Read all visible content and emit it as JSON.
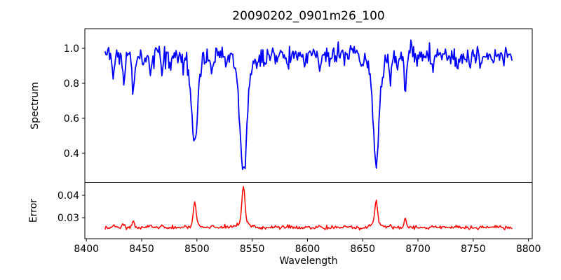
{
  "figure": {
    "background": "#ffffff",
    "spine_color": "#000000",
    "text_color": "#000000"
  },
  "chart_data": {
    "type": "line",
    "title": "20090202_0901m26_100",
    "xlabel": "Wavelength",
    "grid": false,
    "legend": "none",
    "xlim": [
      8398.6,
      8803.4
    ],
    "x_ticks": [
      8400,
      8450,
      8500,
      8550,
      8600,
      8650,
      8700,
      8750,
      8800
    ],
    "x_tick_labels": [
      "8400",
      "8450",
      "8500",
      "8550",
      "8600",
      "8650",
      "8700",
      "8750",
      "8800"
    ],
    "x_data_range": [
      8417,
      8785
    ],
    "n_points": 460,
    "noise_seed": 42,
    "panels": [
      {
        "name": "spectrum",
        "ylabel": "Spectrum",
        "ylim": [
          0.234,
          1.112
        ],
        "y_ticks": [
          0.4,
          0.6,
          0.8,
          1.0
        ],
        "y_tick_labels": [
          "0.4",
          "0.6",
          "0.8",
          "1.0"
        ],
        "line_color": "#0000ff",
        "line_width": 1.8,
        "mode": "absorption",
        "continuum": 0.965,
        "noise_sigma": 0.027,
        "features": [
          {
            "center": 8424.5,
            "amp": 0.14,
            "sigma": 1.0
          },
          {
            "center": 8434.0,
            "amp": 0.16,
            "sigma": 1.1
          },
          {
            "center": 8442.3,
            "amp": 0.23,
            "sigma": 1.2
          },
          {
            "center": 8452.0,
            "amp": 0.07,
            "sigma": 0.9
          },
          {
            "center": 8458.0,
            "amp": 0.11,
            "sigma": 1.0
          },
          {
            "center": 8468.5,
            "amp": 0.1,
            "sigma": 1.1
          },
          {
            "center": 8476.0,
            "amp": 0.06,
            "sigma": 0.9
          },
          {
            "center": 8488.0,
            "amp": 0.07,
            "sigma": 0.9
          },
          {
            "center": 8498.0,
            "amp": 0.46,
            "sigma": 2.6
          },
          {
            "center": 8498.0,
            "amp": 0.06,
            "sigma": 6.0
          },
          {
            "center": 8514.0,
            "amp": 0.08,
            "sigma": 1.0
          },
          {
            "center": 8526.5,
            "amp": 0.07,
            "sigma": 1.0
          },
          {
            "center": 8542.1,
            "amp": 0.6,
            "sigma": 3.0
          },
          {
            "center": 8542.1,
            "amp": 0.09,
            "sigma": 7.5
          },
          {
            "center": 8554.0,
            "amp": 0.06,
            "sigma": 0.9
          },
          {
            "center": 8562.0,
            "amp": 0.06,
            "sigma": 0.9
          },
          {
            "center": 8582.0,
            "amp": 0.08,
            "sigma": 1.0
          },
          {
            "center": 8598.0,
            "amp": 0.07,
            "sigma": 1.0
          },
          {
            "center": 8611.0,
            "amp": 0.09,
            "sigma": 1.0
          },
          {
            "center": 8621.0,
            "amp": 0.07,
            "sigma": 0.9
          },
          {
            "center": 8637.0,
            "amp": 0.06,
            "sigma": 0.9
          },
          {
            "center": 8648.5,
            "amp": 0.08,
            "sigma": 1.0
          },
          {
            "center": 8662.1,
            "amp": 0.55,
            "sigma": 2.5
          },
          {
            "center": 8662.1,
            "amp": 0.08,
            "sigma": 6.0
          },
          {
            "center": 8675.0,
            "amp": 0.12,
            "sigma": 1.1
          },
          {
            "center": 8682.0,
            "amp": 0.07,
            "sigma": 0.9
          },
          {
            "center": 8688.6,
            "amp": 0.21,
            "sigma": 1.3
          },
          {
            "center": 8699.0,
            "amp": 0.06,
            "sigma": 0.9
          },
          {
            "center": 8713.0,
            "amp": 0.08,
            "sigma": 1.0
          },
          {
            "center": 8727.0,
            "amp": 0.05,
            "sigma": 0.9
          },
          {
            "center": 8736.0,
            "amp": 0.07,
            "sigma": 1.0
          },
          {
            "center": 8747.0,
            "amp": 0.05,
            "sigma": 0.9
          },
          {
            "center": 8757.0,
            "amp": 0.06,
            "sigma": 0.9
          },
          {
            "center": 8768.0,
            "amp": 0.05,
            "sigma": 0.9
          },
          {
            "center": 8777.0,
            "amp": 0.05,
            "sigma": 0.9
          }
        ]
      },
      {
        "name": "error",
        "ylabel": "Error",
        "ylim": [
          0.0206,
          0.0458
        ],
        "y_ticks": [
          0.03,
          0.04
        ],
        "y_tick_labels": [
          "0.03",
          "0.04"
        ],
        "line_color": "#ff0000",
        "line_width": 1.5,
        "mode": "emission",
        "continuum": 0.0256,
        "noise_sigma": 0.0004,
        "features": [
          {
            "center": 8424.5,
            "amp": 0.001,
            "sigma": 1.0
          },
          {
            "center": 8434.0,
            "amp": 0.0016,
            "sigma": 1.0
          },
          {
            "center": 8442.3,
            "amp": 0.003,
            "sigma": 1.0
          },
          {
            "center": 8458.0,
            "amp": 0.001,
            "sigma": 0.9
          },
          {
            "center": 8468.5,
            "amp": 0.001,
            "sigma": 0.9
          },
          {
            "center": 8498.0,
            "amp": 0.01,
            "sigma": 1.2
          },
          {
            "center": 8498.0,
            "amp": 0.0014,
            "sigma": 3.5
          },
          {
            "center": 8514.0,
            "amp": 0.0007,
            "sigma": 0.9
          },
          {
            "center": 8542.1,
            "amp": 0.0163,
            "sigma": 1.3
          },
          {
            "center": 8542.1,
            "amp": 0.0026,
            "sigma": 5.0
          },
          {
            "center": 8582.0,
            "amp": 0.0009,
            "sigma": 0.9
          },
          {
            "center": 8611.0,
            "amp": 0.0008,
            "sigma": 0.9
          },
          {
            "center": 8662.1,
            "amp": 0.01,
            "sigma": 1.2
          },
          {
            "center": 8662.1,
            "amp": 0.002,
            "sigma": 4.5
          },
          {
            "center": 8675.0,
            "amp": 0.0012,
            "sigma": 0.9
          },
          {
            "center": 8688.6,
            "amp": 0.0038,
            "sigma": 1.0
          },
          {
            "center": 8713.0,
            "amp": 0.0008,
            "sigma": 0.9
          },
          {
            "center": 8736.0,
            "amp": 0.0007,
            "sigma": 0.9
          }
        ]
      }
    ]
  }
}
